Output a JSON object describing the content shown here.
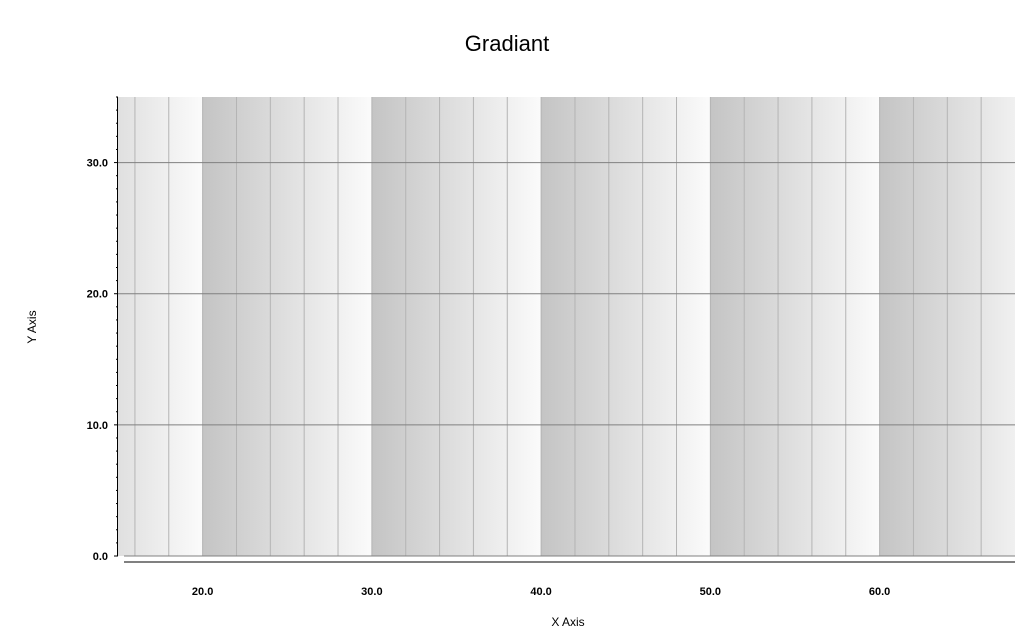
{
  "chart_data": {
    "type": "bar",
    "title": "Gradiant",
    "xlabel": "X Axis",
    "ylabel": "Y Axis",
    "xlim": [
      15.0,
      68.0
    ],
    "ylim": [
      0.0,
      35.0
    ],
    "x_ticks": [
      20.0,
      30.0,
      40.0,
      50.0,
      60.0
    ],
    "x_tick_labels": [
      "20.0",
      "30.0",
      "40.0",
      "50.0",
      "60.0"
    ],
    "y_ticks": [
      0.0,
      10.0,
      20.0,
      30.0
    ],
    "y_tick_labels": [
      "0.0",
      "10.0",
      "20.0",
      "30.0"
    ],
    "grid": true,
    "legend": "none",
    "background_bands": {
      "x_start": 20.0,
      "period": 10.0,
      "gradient": "left-dark-to-right-light",
      "dark_color": "#c4c4c4",
      "light_color": "#fbfbfb"
    },
    "series": []
  },
  "colors": {
    "plot_grid_line": "#808080",
    "minor_vertical_line": "#b4b4b4",
    "axis_line": "#000000"
  }
}
